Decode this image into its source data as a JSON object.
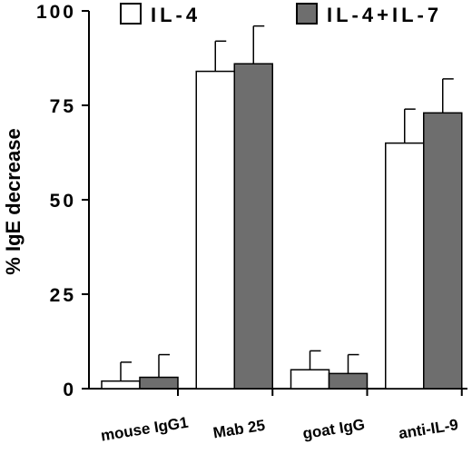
{
  "chart_data": {
    "type": "bar",
    "title": "",
    "xlabel": "",
    "ylabel": "% IgE   decrease",
    "ylim": [
      0,
      100
    ],
    "yticks": [
      "0",
      "25",
      "50",
      "75",
      "100"
    ],
    "categories": [
      "mouse IgG1",
      "Mab 25",
      "goat IgG",
      "anti-IL-9"
    ],
    "series": [
      {
        "name": "IL-4",
        "color": "#ffffff",
        "values": [
          2,
          84,
          5,
          65
        ],
        "errors": [
          5,
          8,
          5,
          9
        ]
      },
      {
        "name": "IL-4+IL-7",
        "color": "#6e6e6e",
        "values": [
          3,
          86,
          4,
          73
        ],
        "errors": [
          6,
          10,
          5,
          9
        ]
      }
    ],
    "legend_position": "top",
    "grid": false
  }
}
